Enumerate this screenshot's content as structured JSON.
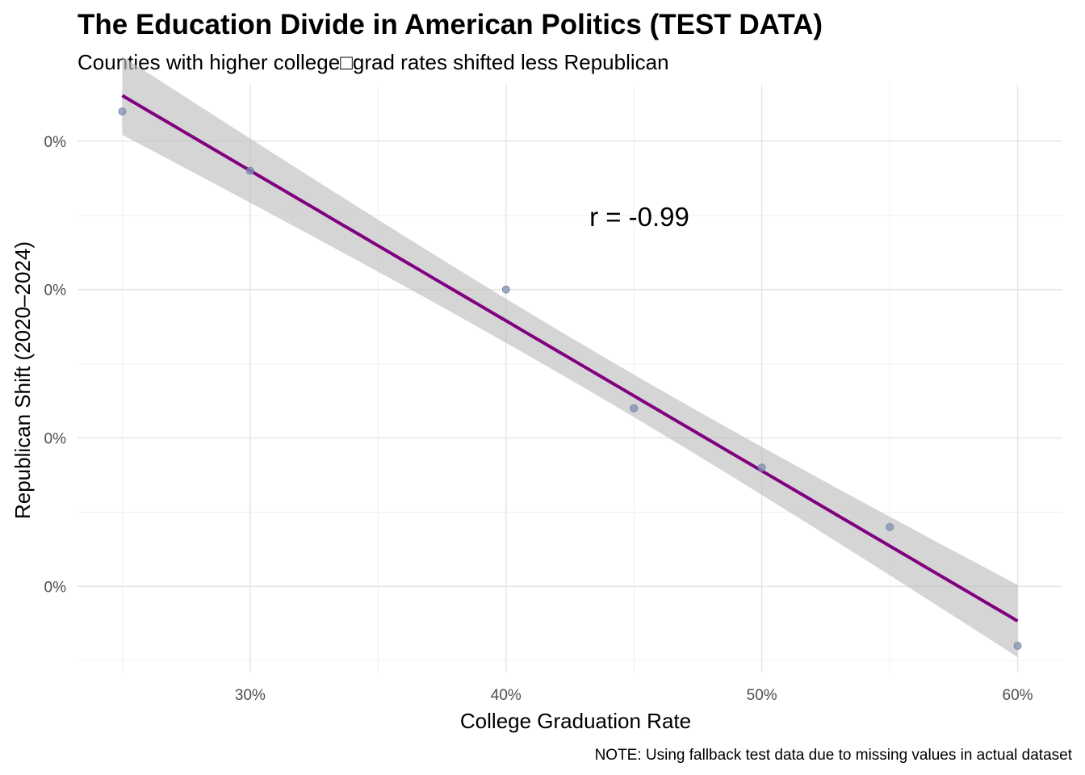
{
  "chart_data": {
    "type": "scatter",
    "title": "The Education Divide in American Politics (TEST DATA)",
    "subtitle": "Counties with higher college□grad rates shifted less Republican",
    "xlabel": "College Graduation Rate",
    "ylabel": "Republican Shift (2020–2024)",
    "caption": "NOTE: Using fallback test data due to missing values in actual dataset",
    "annotation": "r = -0.99",
    "x_ticks": [
      {
        "value": 0.3,
        "label": "30%"
      },
      {
        "value": 0.4,
        "label": "40%"
      },
      {
        "value": 0.5,
        "label": "50%"
      },
      {
        "value": 0.6,
        "label": "60%"
      }
    ],
    "y_ticks": [
      {
        "value": 0.004,
        "label": "0%"
      },
      {
        "value": 0.003,
        "label": "0%"
      },
      {
        "value": 0.002,
        "label": "0%"
      },
      {
        "value": 0.001,
        "label": "0%"
      }
    ],
    "x": [
      0.25,
      0.3,
      0.4,
      0.45,
      0.5,
      0.55,
      0.6
    ],
    "y": [
      0.0042,
      0.0038,
      0.003,
      0.0022,
      0.0018,
      0.0014,
      0.0006
    ],
    "fit": {
      "method": "lm",
      "x_range": [
        0.25,
        0.6
      ],
      "se_band": true
    },
    "xlim": [
      0.2325,
      0.6175
    ],
    "ylim": [
      0.00042,
      0.00438
    ],
    "grid": true,
    "colors": {
      "points": "#8090b3",
      "fit_line": "#800080",
      "band": "#bfbfbf",
      "grid_major": "#e5e5e5",
      "grid_minor": "#f2f2f2"
    }
  }
}
